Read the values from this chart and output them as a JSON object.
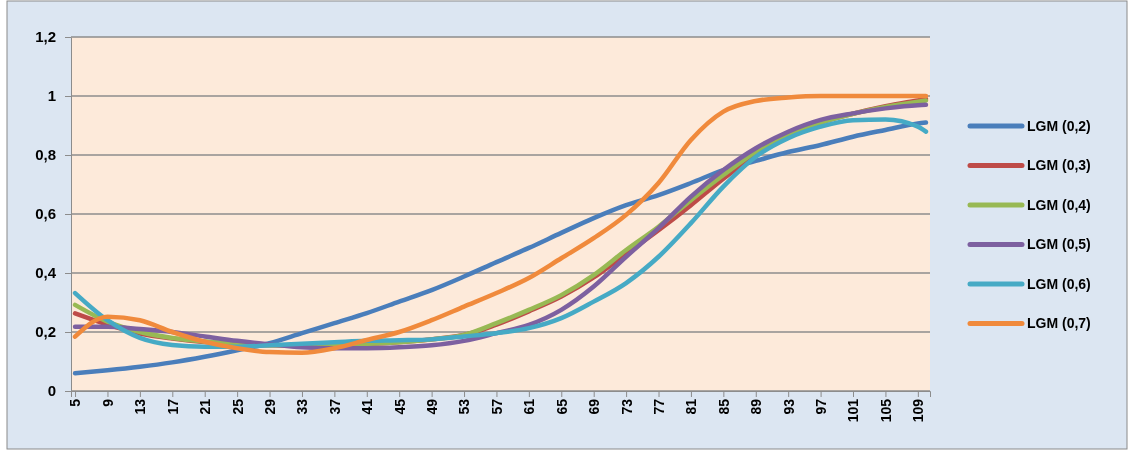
{
  "chart_data": {
    "type": "line",
    "x": [
      5,
      9,
      13,
      17,
      21,
      25,
      29,
      33,
      37,
      41,
      45,
      49,
      53,
      57,
      61,
      65,
      69,
      73,
      77,
      81,
      85,
      89,
      93,
      97,
      101,
      105,
      109,
      110
    ],
    "xlim": [
      4.5,
      110.5
    ],
    "xticks": [
      5,
      9,
      13,
      17,
      21,
      25,
      29,
      33,
      37,
      41,
      45,
      49,
      53,
      57,
      61,
      65,
      69,
      73,
      77,
      81,
      85,
      89,
      93,
      97,
      101,
      105,
      109
    ],
    "ylim": [
      0,
      1.2
    ],
    "yticks": [
      0,
      {
        "value": 0.2,
        "label": "0,2"
      },
      {
        "value": 0.4,
        "label": "0,4"
      },
      {
        "value": 0.6,
        "label": "0,6"
      },
      {
        "value": 0.8,
        "label": "0,8"
      },
      1,
      {
        "value": 1.2,
        "label": "1,2"
      }
    ],
    "grid": "y",
    "legend": "right",
    "marker": "none",
    "line_style": "solid",
    "series": [
      {
        "name": "LGM (0,2)",
        "color": "#4a7ebb",
        "values": [
          0.06,
          0.07,
          0.082,
          0.097,
          0.116,
          0.138,
          0.162,
          0.196,
          0.23,
          0.264,
          0.303,
          0.342,
          0.388,
          0.437,
          0.485,
          0.536,
          0.586,
          0.63,
          0.664,
          0.705,
          0.749,
          0.78,
          0.81,
          0.834,
          0.862,
          0.885,
          0.907,
          0.91
        ]
      },
      {
        "name": "LGM (0,3)",
        "color": "#be4b48",
        "values": [
          0.263,
          0.225,
          0.195,
          0.178,
          0.166,
          0.16,
          0.155,
          null,
          0.157,
          0.16,
          null,
          null,
          0.19,
          0.225,
          0.27,
          0.32,
          0.385,
          0.465,
          0.545,
          0.63,
          0.72,
          0.8,
          0.865,
          0.91,
          0.94,
          0.965,
          0.985,
          0.99
        ]
      },
      {
        "name": "LGM (0,4)",
        "color": "#98b954",
        "values": [
          0.292,
          0.235,
          0.2,
          0.18,
          0.168,
          0.16,
          0.155,
          null,
          0.157,
          0.16,
          0.165,
          0.175,
          0.19,
          0.23,
          0.275,
          0.325,
          0.393,
          0.478,
          0.557,
          0.647,
          0.732,
          0.811,
          0.87,
          0.91,
          0.94,
          0.963,
          0.981,
          0.985
        ]
      },
      {
        "name": "LGM (0,5)",
        "color": "#7d60a0",
        "values": [
          0.218,
          0.218,
          0.21,
          0.2,
          0.185,
          0.17,
          0.158,
          0.148,
          0.145,
          0.145,
          0.148,
          0.155,
          0.17,
          0.196,
          0.224,
          0.275,
          0.354,
          0.455,
          0.552,
          0.659,
          0.749,
          0.823,
          0.879,
          0.919,
          0.941,
          0.958,
          0.969,
          0.97
        ]
      },
      {
        "name": "LGM (0,6)",
        "color": "#46aac5",
        "values": [
          0.332,
          0.24,
          0.18,
          0.156,
          0.15,
          0.15,
          0.155,
          0.16,
          0.165,
          0.17,
          0.172,
          0.175,
          0.185,
          0.196,
          0.213,
          0.247,
          0.303,
          0.366,
          0.455,
          0.569,
          0.693,
          0.794,
          0.857,
          0.896,
          0.918,
          0.92,
          0.896,
          0.879
        ]
      },
      {
        "name": "LGM (0,7)",
        "color": "#f08a3c",
        "values": [
          0.184,
          0.252,
          0.24,
          0.2,
          0.167,
          0.145,
          0.132,
          0.13,
          0.145,
          0.173,
          0.2,
          0.24,
          0.286,
          0.332,
          0.383,
          0.45,
          0.518,
          0.597,
          0.705,
          0.851,
          0.947,
          0.983,
          0.995,
          1.0,
          1.0,
          1.0,
          1.0,
          1.0
        ]
      }
    ]
  }
}
